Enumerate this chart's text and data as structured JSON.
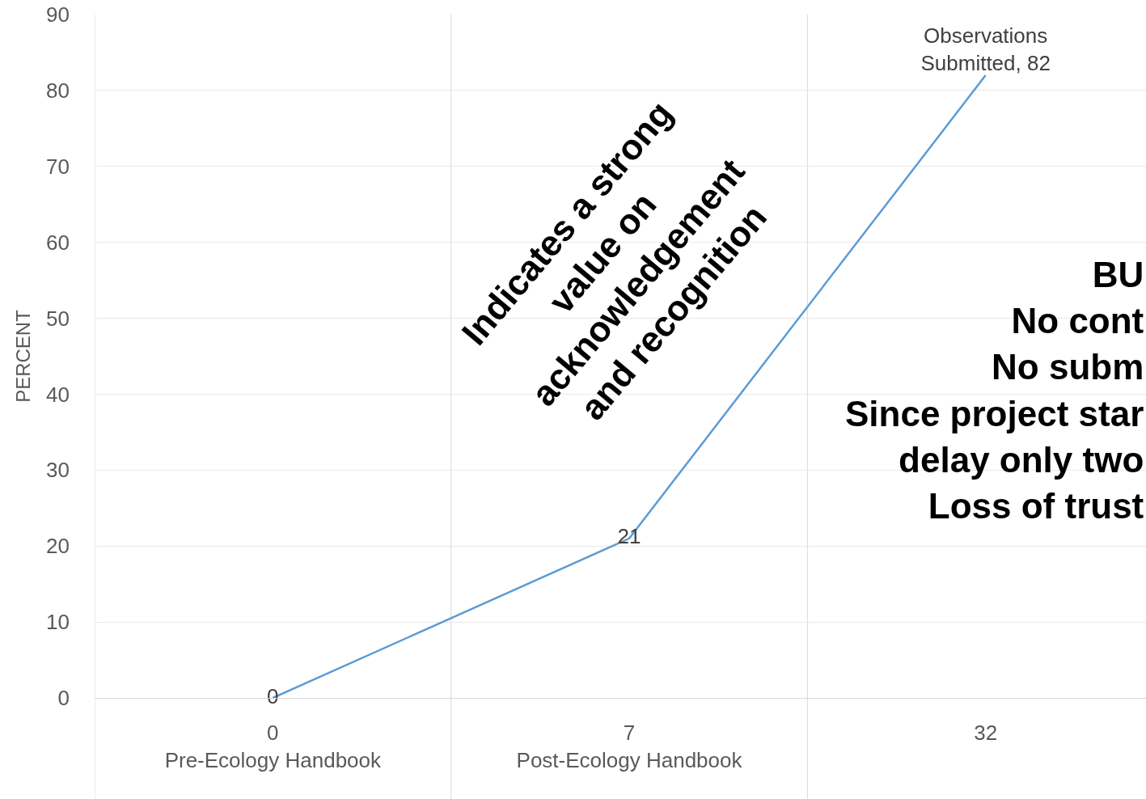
{
  "chart_data": {
    "type": "line",
    "ylabel": "PERCENT",
    "categories": [
      "0\nPre-Ecology Handbook",
      "7\nPost-Ecology Handbook",
      "32"
    ],
    "series": [
      {
        "color": "#5b9bd5",
        "values": [
          0,
          21,
          82
        ],
        "value_labels": [
          "0",
          "21",
          "Observations Submitted, 82"
        ]
      }
    ],
    "ylim": [
      0,
      90
    ],
    "yticks": [
      0,
      10,
      20,
      30,
      40,
      50,
      60,
      70,
      80,
      90
    ],
    "grid": true,
    "marker": "none",
    "line_style": "solid",
    "annotations": [
      "Indicates a strong\nvalue on\nacknowledgement\nand recognition",
      "BU\nNo cont\nNo subm\nSince project star\ndelay only two\nLoss of trust"
    ]
  }
}
